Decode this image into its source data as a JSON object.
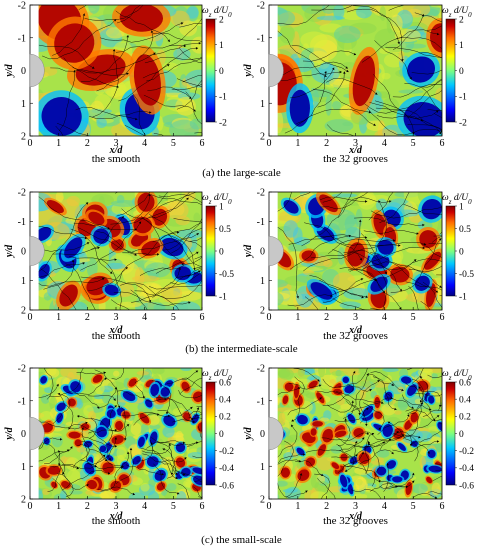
{
  "figure": {
    "rows": [
      {
        "id": "large",
        "caption": "(a) the large-scale",
        "colorbar_ticks": [
          "2",
          "1",
          "0",
          "-1",
          "-2"
        ],
        "panels": [
          {
            "id": "a-smooth",
            "sublabel": "the smooth",
            "seed": 11
          },
          {
            "id": "a-grooves",
            "sublabel": "the 32 grooves",
            "seed": 23
          }
        ]
      },
      {
        "id": "intermediate",
        "caption": "(b) the intermediate-scale",
        "colorbar_ticks": [
          "1",
          "0.5",
          "0",
          "-0.5",
          "-1"
        ],
        "panels": [
          {
            "id": "b-smooth",
            "sublabel": "the smooth",
            "seed": 37
          },
          {
            "id": "b-grooves",
            "sublabel": "the 32 grooves",
            "seed": 41
          }
        ]
      },
      {
        "id": "small",
        "caption": "(c) the small-scale",
        "colorbar_ticks": [
          "0.6",
          "0.4",
          "0.2",
          "0",
          "-0.2",
          "-0.4",
          "-0.6"
        ],
        "panels": [
          {
            "id": "c-smooth",
            "sublabel": "the smooth",
            "seed": 53
          },
          {
            "id": "c-grooves",
            "sublabel": "the 32 grooves",
            "seed": 67
          }
        ]
      }
    ],
    "x_ticks": [
      "0",
      "1",
      "2",
      "3",
      "4",
      "5",
      "6"
    ],
    "y_ticks": [
      "-2",
      "-1",
      "0",
      "1",
      "2"
    ],
    "xlabel": "x/d",
    "ylabel": "y/d",
    "colorbar_title": "ω_z d/U_0",
    "colormap": [
      "#00007f",
      "#0000ff",
      "#00c8ff",
      "#7fff7f",
      "#ffff00",
      "#ff6a00",
      "#cc0000",
      "#7f0000"
    ]
  }
}
